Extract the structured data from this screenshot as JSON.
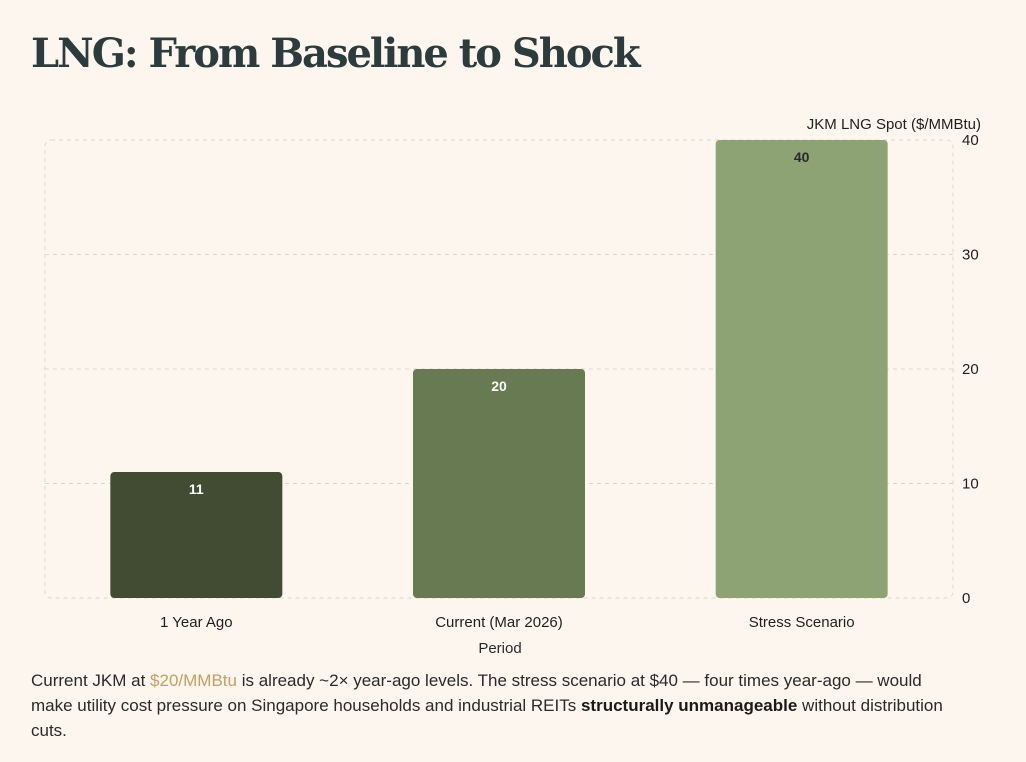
{
  "page": {
    "title": "LNG: From Baseline to Shock"
  },
  "caption": {
    "part1": "Current JKM at ",
    "highlight": "$20/MMBtu",
    "part2": " is already ~2× year-ago levels. The stress scenario at $40 — four times year-ago — would make utility cost pressure on Singapore households and industrial REITs ",
    "bold": "structurally unmanageable",
    "part3": " without distribution cuts."
  },
  "colors": {
    "background": "#fdf6ef",
    "highlight": "#c4a064",
    "gridline": "#dcd6cf"
  },
  "chart_data": {
    "type": "bar",
    "categories": [
      "1 Year Ago",
      "Current (Mar 2026)",
      "Stress Scenario"
    ],
    "values": [
      11,
      20,
      40
    ],
    "data_labels": [
      "11",
      "20",
      "40"
    ],
    "bar_colors": [
      "#414c33",
      "#687a51",
      "#8da373"
    ],
    "label_colors": [
      "#ffffff",
      "#ffffff",
      "#2a2a2a"
    ],
    "xlabel": "Period",
    "ylabel": "JKM LNG Spot ($/MMBtu)",
    "ylim": [
      0,
      40
    ],
    "yticks": [
      0,
      10,
      20,
      30,
      40
    ],
    "y_axis_side": "right",
    "grid": true
  }
}
